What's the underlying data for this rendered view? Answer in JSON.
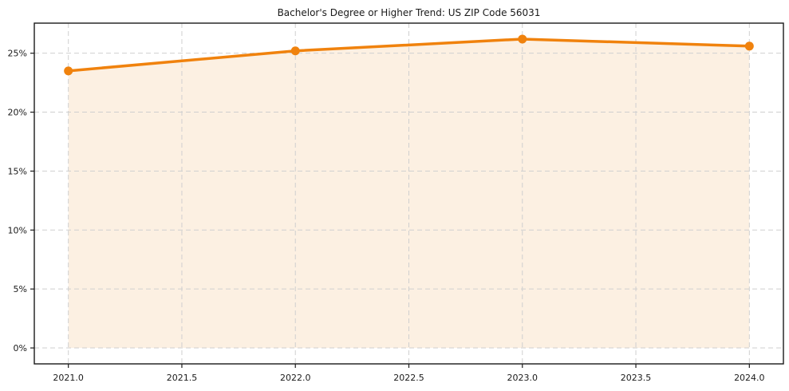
{
  "chart_data": {
    "type": "line",
    "title": "Bachelor's Degree or Higher Trend: US ZIP Code 56031",
    "series": [
      {
        "name": "Bachelor's Degree or Higher %",
        "x": [
          2021.0,
          2022.0,
          2023.0,
          2024.0
        ],
        "values": [
          23.5,
          25.2,
          26.2,
          25.6
        ]
      }
    ],
    "xlabel": "",
    "ylabel": "",
    "x_ticks": [
      2021.0,
      2021.5,
      2022.0,
      2022.5,
      2023.0,
      2023.5,
      2024.0
    ],
    "x_tick_labels": [
      "2021.0",
      "2021.5",
      "2022.0",
      "2022.5",
      "2023.0",
      "2023.5",
      "2024.0"
    ],
    "y_ticks": [
      0,
      5,
      10,
      15,
      20,
      25
    ],
    "y_tick_labels": [
      "0%",
      "5%",
      "10%",
      "15%",
      "20%",
      "25%"
    ],
    "xlim": [
      2020.85,
      2024.15
    ],
    "ylim": [
      -1.35,
      27.55
    ],
    "grid": true,
    "grid_style": "dashed",
    "legend": "none",
    "area_fill": true,
    "fill_baseline": 0,
    "colors": {
      "line": "#F0820D",
      "marker": "#F0820D",
      "area_fill": "#FCF0E2",
      "grid": "#cfcfcf",
      "spine": "#1a1a1a",
      "text": "#1a1a1a",
      "background": "#ffffff"
    }
  }
}
